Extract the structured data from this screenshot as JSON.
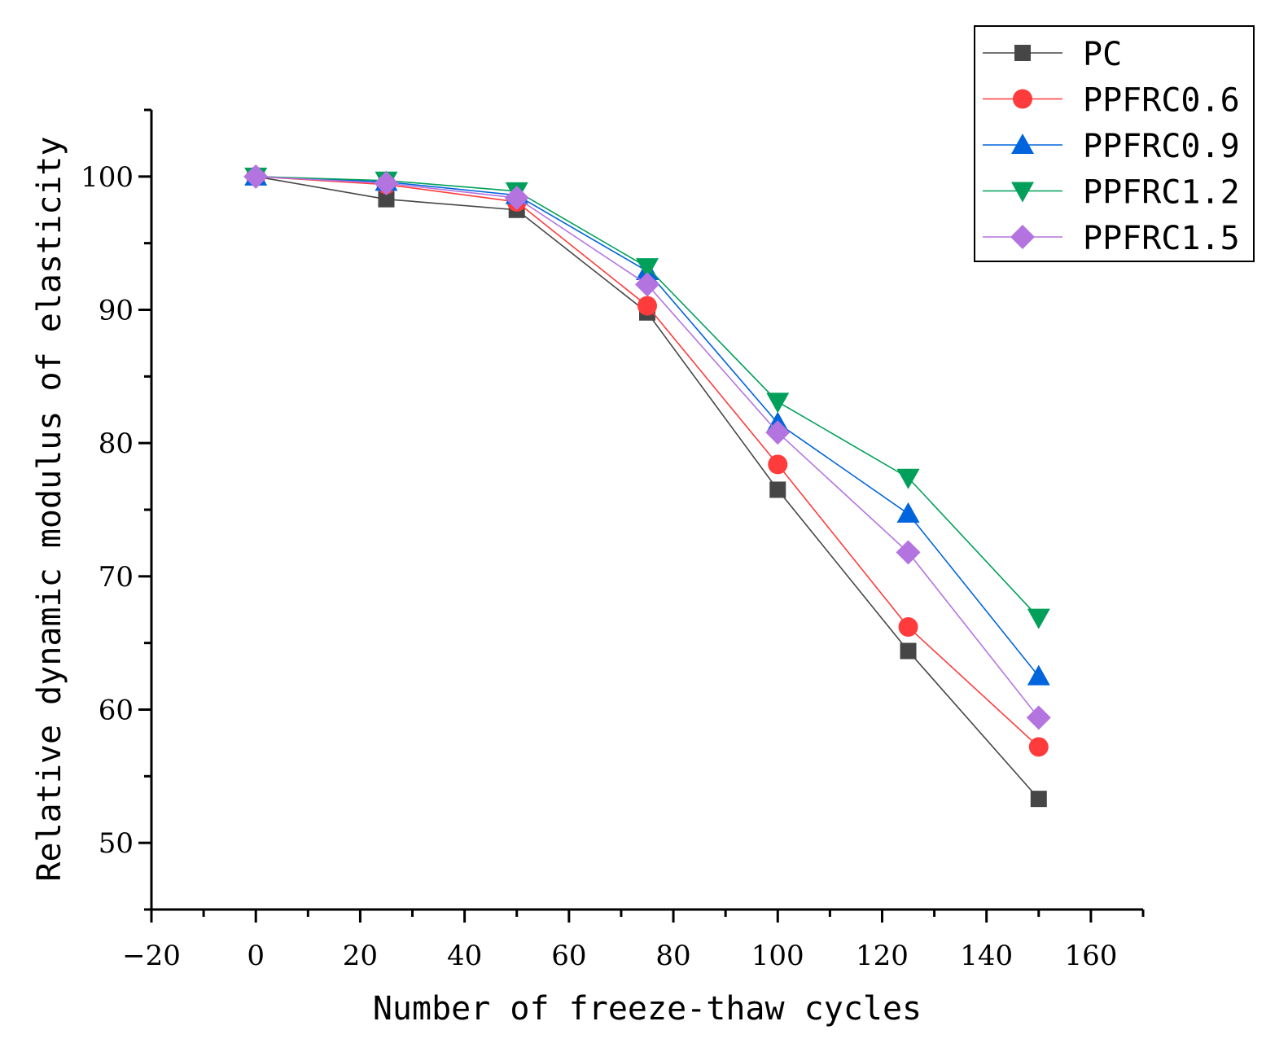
{
  "chart_data": {
    "type": "line",
    "xlabel": "Number of freeze-thaw cycles",
    "ylabel": "Relative dynamic modulus of elasticity",
    "xlim": [
      -20,
      170
    ],
    "ylim": [
      45,
      105
    ],
    "xticks": [
      -20,
      0,
      20,
      40,
      60,
      80,
      100,
      120,
      140,
      160
    ],
    "xtick_labels": [
      "−20",
      "0",
      "20",
      "40",
      "60",
      "80",
      "100",
      "120",
      "140",
      "160"
    ],
    "yticks": [
      50,
      60,
      70,
      80,
      90,
      100
    ],
    "ytick_labels": [
      "50",
      "60",
      "70",
      "80",
      "90",
      "100"
    ],
    "x": [
      0,
      25,
      50,
      75,
      100,
      125,
      150
    ],
    "legend_position": "top-right",
    "grid": false,
    "series": [
      {
        "name": "PC",
        "marker": "square",
        "color": "#464646",
        "values": [
          100,
          98.3,
          97.5,
          89.8,
          76.5,
          64.4,
          53.3
        ]
      },
      {
        "name": "PPFRC0.6",
        "marker": "circle",
        "color": "#ff3b3b",
        "values": [
          100,
          99.4,
          98.1,
          90.3,
          78.4,
          66.2,
          57.2
        ]
      },
      {
        "name": "PPFRC0.9",
        "marker": "triangle-up",
        "color": "#0064dc",
        "values": [
          100,
          99.6,
          98.6,
          92.9,
          81.5,
          74.7,
          62.5
        ]
      },
      {
        "name": "PPFRC1.2",
        "marker": "triangle-down",
        "color": "#00a05a",
        "values": [
          100,
          99.7,
          98.9,
          93.2,
          83.1,
          77.4,
          66.9
        ]
      },
      {
        "name": "PPFRC1.5",
        "marker": "diamond",
        "color": "#b474e0",
        "values": [
          100,
          99.5,
          98.4,
          91.9,
          80.8,
          71.8,
          59.4
        ]
      }
    ]
  }
}
